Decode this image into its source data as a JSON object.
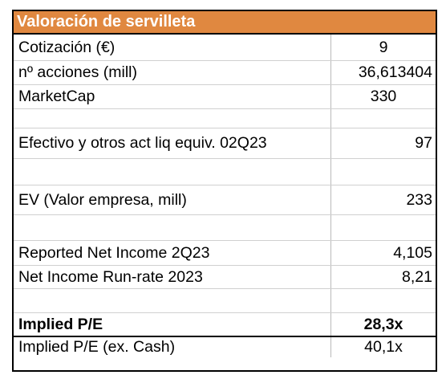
{
  "header": {
    "title": "Valoración de servilleta"
  },
  "rows": [
    {
      "label": "Cotización (€)",
      "value": "9"
    },
    {
      "label": "nº acciones (mill)",
      "value": "36,613404"
    },
    {
      "label": "MarketCap",
      "value": "330"
    },
    {
      "label": "",
      "value": ""
    },
    {
      "label": "Efectivo y otros act liq equiv. 02Q23",
      "value": "97"
    },
    {
      "label": "",
      "value": ""
    },
    {
      "label": "EV (Valor empresa, mill)",
      "value": "233"
    },
    {
      "label": "",
      "value": ""
    },
    {
      "label": "Reported Net Income 2Q23",
      "value": "4,105"
    },
    {
      "label": "Net Income Run-rate 2023",
      "value": "8,21"
    },
    {
      "label": "",
      "value": ""
    },
    {
      "label": "Implied P/E",
      "value": "28,3x"
    },
    {
      "label": "Implied P/E (ex. Cash)",
      "value": "40,1x"
    }
  ],
  "colors": {
    "header_fill": "#e08840",
    "header_text": "#ffffff",
    "border": "#000000",
    "gridline": "#d0d0d0"
  }
}
